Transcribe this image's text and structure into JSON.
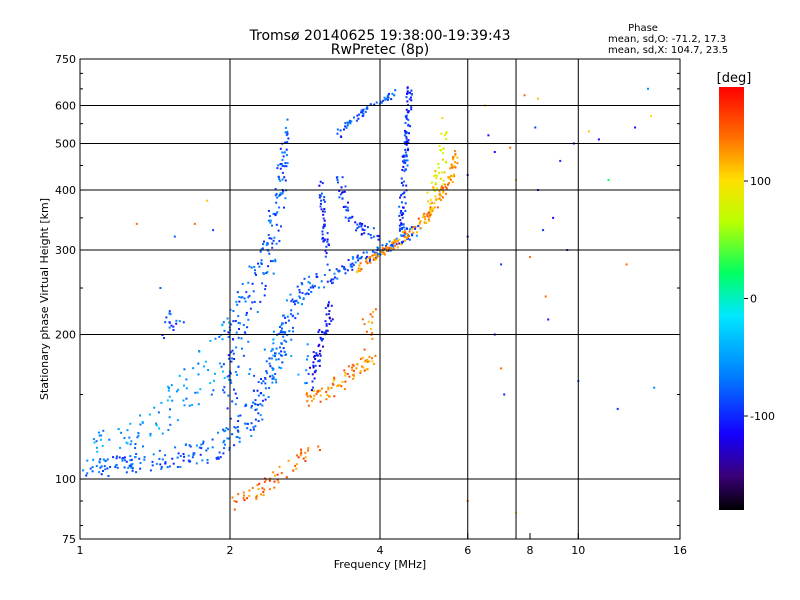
{
  "chart_data": {
    "type": "scatter",
    "title": "Tromsø 20140625 19:38:00-19:39:43",
    "subtitle": "RwPretec (8p)",
    "xlabel": "Frequency [MHz]",
    "ylabel": "Stationary phase Virtual Height [km]",
    "x_scale": "log",
    "y_scale": "log",
    "xlim": [
      1,
      16
    ],
    "ylim": [
      75,
      750
    ],
    "x_ticks": [
      1,
      2,
      4,
      6,
      8,
      10,
      16
    ],
    "x_tick_labels": [
      "1",
      "2",
      "4",
      "6",
      "8",
      "10",
      "16"
    ],
    "x_grid": [
      2,
      4,
      6,
      7.5,
      10
    ],
    "y_ticks": [
      75,
      100,
      200,
      300,
      400,
      500,
      600,
      750
    ],
    "y_tick_labels": [
      "75",
      "100",
      "200",
      "300",
      "400",
      "500",
      "600",
      "750"
    ],
    "grid": true,
    "stats": {
      "heading": "Phase",
      "o_line": "mean, sd,O: -71.2, 17.3",
      "x_line": "mean, sd,X: 104.7, 23.5"
    },
    "colorbar": {
      "label": "[deg]",
      "range": [
        -180,
        180
      ],
      "ticks": [
        100,
        0,
        -100
      ],
      "tick_labels": [
        "100",
        "0",
        "-100"
      ],
      "colormap": "rainbow"
    },
    "traces": [
      {
        "kind": "band",
        "phase": -80,
        "density": 0.55,
        "points": [
          [
            1.0,
            105,
            5
          ],
          [
            1.4,
            109,
            5
          ],
          [
            1.75,
            114,
            7
          ],
          [
            2.0,
            122,
            9
          ],
          [
            2.25,
            140,
            14
          ],
          [
            2.45,
            175,
            18
          ],
          [
            2.6,
            215,
            24
          ],
          [
            2.8,
            248,
            16
          ],
          [
            3.0,
            258,
            10
          ],
          [
            3.3,
            268,
            8
          ],
          [
            3.6,
            285,
            8
          ],
          [
            4.0,
            300,
            8
          ],
          [
            4.4,
            315,
            10
          ],
          [
            4.8,
            340,
            14
          ]
        ]
      },
      {
        "kind": "band",
        "phase": -80,
        "density": 0.45,
        "points": [
          [
            1.95,
            150,
            40
          ],
          [
            2.1,
            210,
            45
          ],
          [
            2.3,
            260,
            45
          ],
          [
            2.45,
            330,
            50
          ],
          [
            2.55,
            420,
            60
          ],
          [
            2.6,
            520,
            50
          ]
        ]
      },
      {
        "kind": "band",
        "phase": -55,
        "density": 0.35,
        "points": [
          [
            1.05,
            115,
            8
          ],
          [
            1.3,
            125,
            12
          ],
          [
            1.55,
            145,
            18
          ],
          [
            1.75,
            165,
            25
          ],
          [
            1.9,
            175,
            30
          ],
          [
            2.0,
            200,
            30
          ]
        ]
      },
      {
        "kind": "band",
        "phase": -80,
        "density": 0.5,
        "points": [
          [
            3.3,
            525,
            12
          ],
          [
            3.6,
            570,
            10
          ],
          [
            4.0,
            610,
            8
          ],
          [
            4.3,
            640,
            10
          ]
        ]
      },
      {
        "kind": "band",
        "phase": -95,
        "density": 0.5,
        "points": [
          [
            4.6,
            650,
            10
          ],
          [
            4.55,
            560,
            30
          ],
          [
            4.5,
            460,
            40
          ],
          [
            4.45,
            380,
            40
          ],
          [
            4.4,
            330,
            20
          ]
        ]
      },
      {
        "kind": "band",
        "phase": -100,
        "density": 0.45,
        "points": [
          [
            3.3,
            420,
            20
          ],
          [
            3.45,
            360,
            20
          ],
          [
            3.7,
            330,
            12
          ],
          [
            4.0,
            318,
            8
          ]
        ]
      },
      {
        "kind": "band",
        "phase": -100,
        "density": 0.4,
        "points": [
          [
            3.05,
            400,
            25
          ],
          [
            3.1,
            330,
            20
          ],
          [
            3.15,
            290,
            15
          ]
        ]
      },
      {
        "kind": "band",
        "phase": 130,
        "density": 0.65,
        "points": [
          [
            3.6,
            275,
            6
          ],
          [
            3.9,
            290,
            6
          ],
          [
            4.2,
            305,
            6
          ],
          [
            4.6,
            325,
            8
          ],
          [
            5.0,
            355,
            10
          ],
          [
            5.3,
            390,
            10
          ],
          [
            5.55,
            425,
            12
          ],
          [
            5.7,
            470,
            20
          ]
        ]
      },
      {
        "kind": "band",
        "phase": 90,
        "density": 0.4,
        "points": [
          [
            5.0,
            380,
            20
          ],
          [
            5.3,
            450,
            40
          ],
          [
            5.4,
            520,
            60
          ]
        ]
      },
      {
        "kind": "band",
        "phase": 130,
        "density": 0.6,
        "points": [
          [
            2.85,
            145,
            5
          ],
          [
            3.1,
            152,
            6
          ],
          [
            3.35,
            160,
            7
          ],
          [
            3.6,
            170,
            6
          ],
          [
            3.9,
            178,
            6
          ]
        ]
      },
      {
        "kind": "band",
        "phase": -110,
        "density": 0.5,
        "points": [
          [
            2.9,
            160,
            12
          ],
          [
            3.0,
            180,
            12
          ],
          [
            3.1,
            205,
            14
          ],
          [
            3.2,
            230,
            10
          ]
        ]
      },
      {
        "kind": "band",
        "phase": 130,
        "density": 0.4,
        "points": [
          [
            3.7,
            195,
            20
          ],
          [
            3.9,
            215,
            20
          ]
        ]
      },
      {
        "kind": "band",
        "phase": -85,
        "density": 0.4,
        "points": [
          [
            1.45,
            205,
            12
          ],
          [
            1.6,
            220,
            10
          ]
        ]
      },
      {
        "kind": "band",
        "phase": 140,
        "density": 0.35,
        "points": [
          [
            2.0,
            90,
            4
          ],
          [
            2.3,
            95,
            4
          ],
          [
            2.7,
            108,
            4
          ],
          [
            3.0,
            118,
            4
          ]
        ]
      },
      {
        "kind": "band",
        "phase": -60,
        "density": 0.3,
        "points": [
          [
            2.2,
            180,
            30
          ],
          [
            2.6,
            185,
            25
          ],
          [
            2.9,
            175,
            20
          ]
        ]
      }
    ],
    "scatter": [
      [
        1.3,
        340,
        140
      ],
      [
        1.55,
        320,
        -80
      ],
      [
        1.7,
        340,
        140
      ],
      [
        1.8,
        380,
        110
      ],
      [
        1.85,
        330,
        -90
      ],
      [
        1.45,
        250,
        -80
      ],
      [
        6.0,
        320,
        -110
      ],
      [
        6.0,
        430,
        -110
      ],
      [
        6.0,
        90,
        140
      ],
      [
        6.6,
        520,
        -110
      ],
      [
        6.8,
        480,
        -110
      ],
      [
        7.0,
        280,
        -90
      ],
      [
        7.0,
        170,
        140
      ],
      [
        7.1,
        150,
        -100
      ],
      [
        7.3,
        490,
        140
      ],
      [
        7.5,
        420,
        110
      ],
      [
        7.5,
        85,
        100
      ],
      [
        7.8,
        630,
        140
      ],
      [
        8.2,
        540,
        -90
      ],
      [
        8.3,
        400,
        -100
      ],
      [
        8.5,
        330,
        -100
      ],
      [
        8.6,
        240,
        140
      ],
      [
        8.7,
        215,
        -110
      ],
      [
        8.9,
        350,
        -110
      ],
      [
        9.2,
        460,
        -100
      ],
      [
        9.5,
        300,
        -100
      ],
      [
        9.8,
        500,
        -110
      ],
      [
        10.5,
        530,
        110
      ],
      [
        11,
        510,
        -110
      ],
      [
        11.5,
        420,
        20
      ],
      [
        12.5,
        280,
        140
      ],
      [
        13,
        540,
        -110
      ],
      [
        13.8,
        650,
        -60
      ],
      [
        14,
        570,
        100
      ],
      [
        14.2,
        155,
        -60
      ],
      [
        12,
        140,
        -100
      ],
      [
        6.5,
        600,
        110
      ],
      [
        6.8,
        200,
        -110
      ],
      [
        8.0,
        290,
        140
      ],
      [
        8.3,
        620,
        110
      ],
      [
        10,
        160,
        -90
      ]
    ]
  }
}
